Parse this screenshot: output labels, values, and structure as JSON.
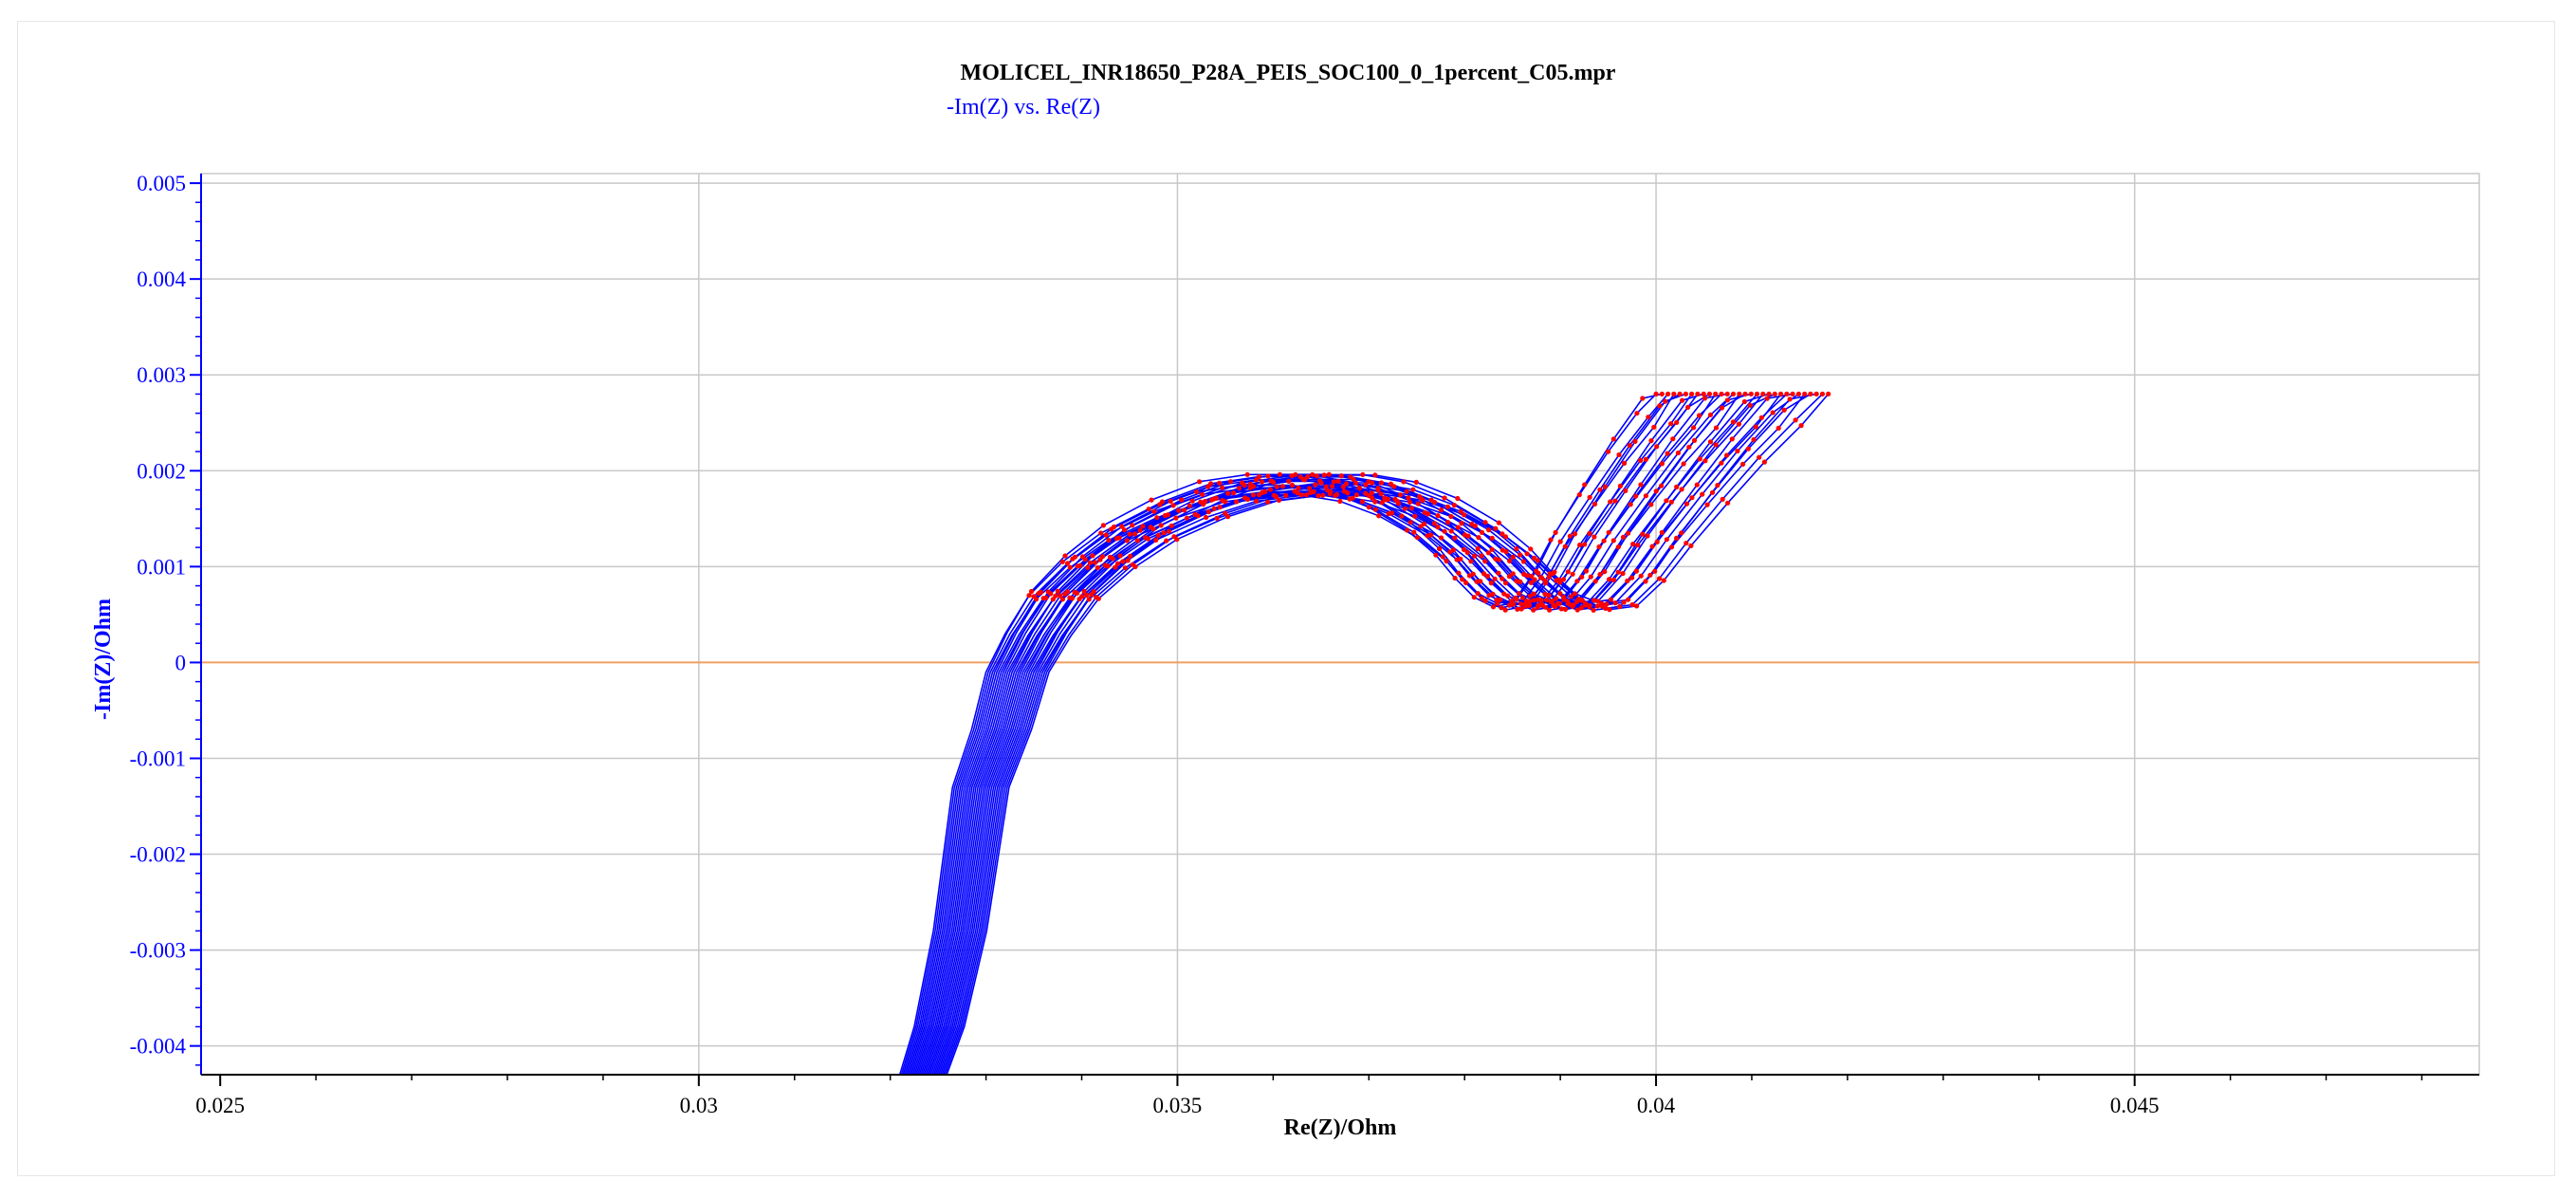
{
  "title": "MOLICEL_INR18650_P28A_PEIS_SOC100_0_1percent_C05.mpr",
  "subtitle": "-Im(Z) vs. Re(Z)",
  "colors": {
    "series_line": "#0000ff",
    "series_marker": "#ff0000",
    "y_axis": "#0000ff",
    "x_axis": "#000000",
    "zero_line": "#f0a060",
    "grid": "#c8c8c8"
  },
  "chart_data": {
    "type": "line",
    "title": "MOLICEL_INR18650_P28A_PEIS_SOC100_0_1percent_C05.mpr",
    "legend": [
      "-Im(Z) vs. Re(Z)"
    ],
    "xlabel": "Re(Z)/Ohm",
    "ylabel": "-Im(Z)/Ohm",
    "xlim": [
      0.0248,
      0.0486
    ],
    "ylim": [
      -0.0043,
      0.0051
    ],
    "x_ticks": [
      "0.025",
      "0.03",
      "0.035",
      "0.04",
      "0.045"
    ],
    "x_tick_values": [
      0.025,
      0.03,
      0.035,
      0.04,
      0.045
    ],
    "y_ticks": [
      "0.005",
      "0.004",
      "0.003",
      "0.002",
      "0.001",
      "0",
      "-0.001",
      "-0.002",
      "-0.003",
      "-0.004"
    ],
    "y_tick_values": [
      0.005,
      0.004,
      0.003,
      0.002,
      0.001,
      0,
      -0.001,
      -0.002,
      -0.003,
      -0.004
    ],
    "grid": true,
    "series_count": 30,
    "series_shift_range": [
      0.0,
      0.0014
    ],
    "reference_spectrum": {
      "re": [
        0.0321,
        0.03225,
        0.03245,
        0.03265,
        0.03285,
        0.033,
        0.0332,
        0.03345,
        0.0338,
        0.0342,
        0.0347,
        0.0352,
        0.0357,
        0.0362,
        0.0366,
        0.037,
        0.0374,
        0.0377,
        0.0379,
        0.0381,
        0.0383,
        0.0385,
        0.0387,
        0.0389,
        0.0392,
        0.0395,
        0.0398,
        0.04
      ],
      "neg_im": [
        -0.0043,
        -0.0038,
        -0.0028,
        -0.0013,
        -0.0007,
        -0.0001,
        0.0003,
        0.0007,
        0.00105,
        0.00135,
        0.0016,
        0.00178,
        0.00185,
        0.00185,
        0.00178,
        0.00162,
        0.00138,
        0.00112,
        0.00088,
        0.00068,
        0.00058,
        0.00062,
        0.0009,
        0.00128,
        0.00175,
        0.0022,
        0.0026,
        0.0028
      ]
    }
  }
}
